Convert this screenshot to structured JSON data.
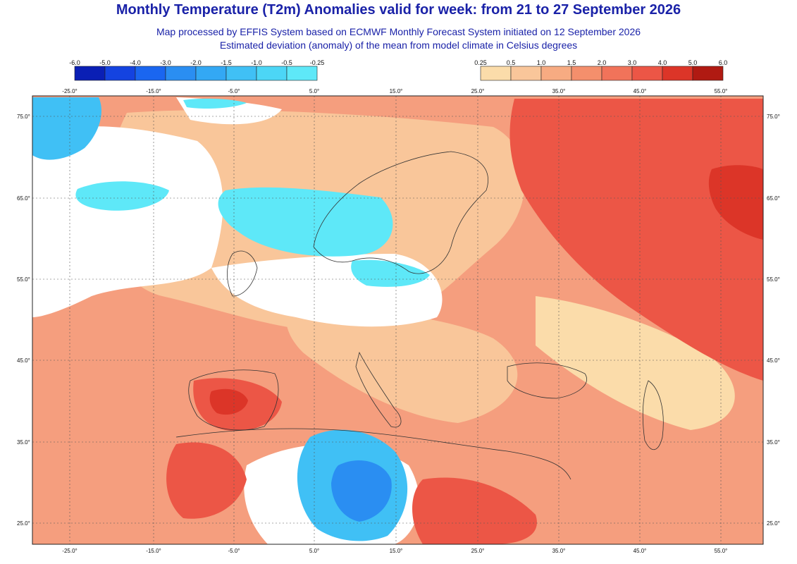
{
  "header": {
    "title": "Monthly Temperature (T2m) Anomalies valid for week: from 21 to 27 September 2026",
    "subtitle_1": "Map processed by EFFIS System based on ECMWF Monthly Forecast System initiated on 12 September 2026",
    "subtitle_2": "Estimated deviation (anomaly) of the mean from model climate in Celsius degrees"
  },
  "legend_cold": {
    "ticks": [
      "-6.0",
      "-5.0",
      "-4.0",
      "-3.0",
      "-2.0",
      "-1.5",
      "-1.0",
      "-0.5",
      "-0.25"
    ],
    "colors": [
      "#0a1fb5",
      "#1443e0",
      "#1a66f0",
      "#2a8ef2",
      "#33a8f4",
      "#40c0f5",
      "#4cd6f6",
      "#5ee8f8"
    ]
  },
  "legend_warm": {
    "ticks": [
      "0.25",
      "0.5",
      "1.0",
      "1.5",
      "2.0",
      "3.0",
      "4.0",
      "5.0",
      "6.0"
    ],
    "colors": [
      "#fbdcaa",
      "#f9c69a",
      "#f7ab82",
      "#f48f6c",
      "#f1735a",
      "#ec5646",
      "#dc3528",
      "#b01a12"
    ]
  },
  "map": {
    "lon_labels": [
      "-25.0°",
      "-15.0°",
      "-5.0°",
      "5.0°",
      "15.0°",
      "25.0°",
      "35.0°",
      "45.0°",
      "55.0°"
    ],
    "lat_labels": [
      "75.0°",
      "65.0°",
      "55.0°",
      "45.0°",
      "35.0°",
      "25.0°"
    ],
    "colors": {
      "base_warm": "#f59e7e",
      "light_warm": "#f9c69a",
      "pale_warm": "#fbdcaa",
      "strong_warm": "#ec5646",
      "very_strong_warm": "#dc3528",
      "neutral": "#ffffff",
      "cold_light": "#5ee8f8",
      "cold_mid": "#40c0f5",
      "cold_strong": "#2a8ef2",
      "cold_deep": "#1a66f0"
    }
  }
}
